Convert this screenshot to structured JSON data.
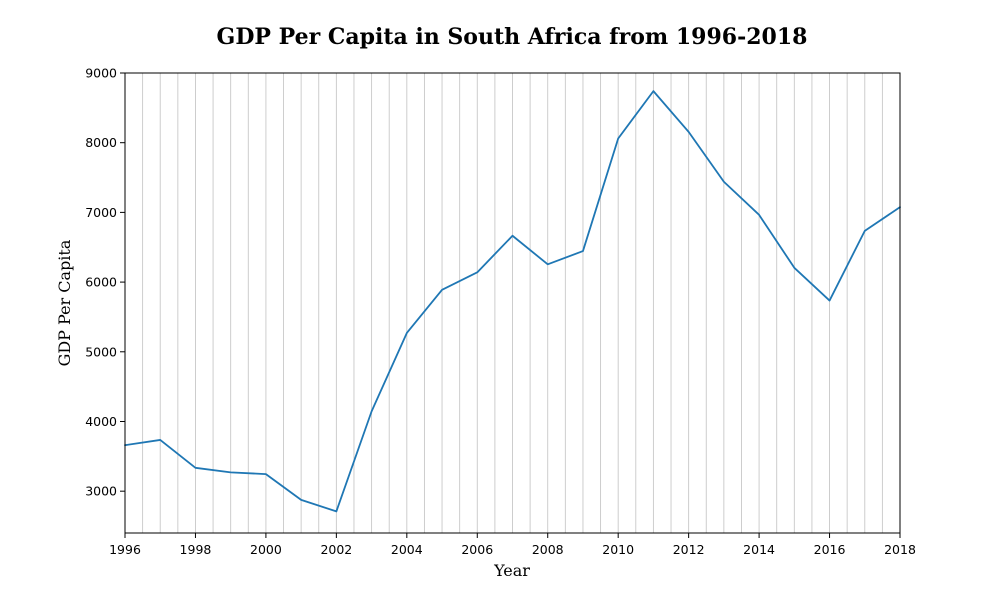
{
  "chart_data": {
    "type": "line",
    "title": "GDP Per Capita in South Africa from 1996-2018",
    "xlabel": "Year",
    "ylabel": "GDP Per Capita",
    "xlim": [
      1996,
      2018
    ],
    "ylim": [
      2400,
      9000
    ],
    "xticks": [
      1996,
      1998,
      2000,
      2002,
      2004,
      2006,
      2008,
      2010,
      2012,
      2014,
      2016,
      2018
    ],
    "yticks": [
      3000,
      4000,
      5000,
      6000,
      7000,
      8000,
      9000
    ],
    "grid": "vertical",
    "x": [
      1996,
      1997,
      1998,
      1999,
      2000,
      2001,
      2002,
      2003,
      2004,
      2005,
      2006,
      2007,
      2008,
      2009,
      2010,
      2011,
      2012,
      2013,
      2014,
      2015,
      2016,
      2017,
      2018
    ],
    "series": [
      {
        "color": "#1f77b4",
        "values": [
          3660,
          3735,
          3335,
          3270,
          3245,
          2875,
          2710,
          4145,
          5270,
          5890,
          6140,
          6665,
          6255,
          6445,
          8060,
          8740,
          8155,
          7440,
          6965,
          6205,
          5735,
          6735,
          7075
        ]
      }
    ]
  }
}
